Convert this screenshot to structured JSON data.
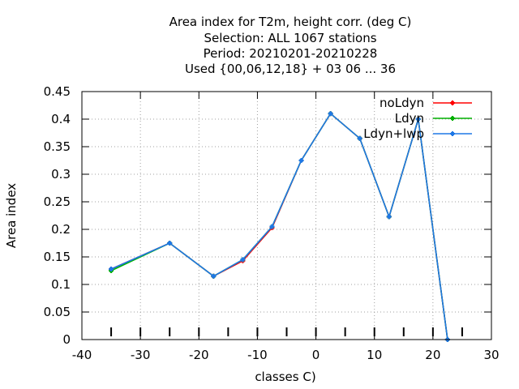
{
  "chart_data": {
    "type": "line",
    "title_lines": [
      "Area index  for T2m, height corr. (deg C)",
      "Selection: ALL   1067 stations",
      "Period: 20210201-20210228",
      "Used {00,06,12,18} + 03 06 ... 36"
    ],
    "xlabel": "classes C)",
    "ylabel": "Area index",
    "xlim": [
      -40,
      30
    ],
    "ylim": [
      0,
      0.45
    ],
    "x_ticks": [
      -40,
      -30,
      -20,
      -10,
      0,
      10,
      20,
      30
    ],
    "x_tick_labels": [
      "-40",
      "-30",
      "-20",
      "-10",
      "0",
      "10",
      "20",
      "30"
    ],
    "y_ticks": [
      0,
      0.05,
      0.1,
      0.15,
      0.2,
      0.25,
      0.3,
      0.35,
      0.4,
      0.45
    ],
    "y_tick_labels": [
      "0",
      "0.05",
      "0.1",
      "0.15",
      "0.2",
      "0.25",
      "0.3",
      "0.35",
      "0.4",
      "0.45"
    ],
    "minor_x_ticks": [
      -35,
      -25,
      -15,
      -5,
      5,
      15,
      25
    ],
    "grid": true,
    "legend_position": "top-right",
    "series": [
      {
        "name": "noLdyn",
        "color": "#ff0000",
        "x": [
          -35,
          -25,
          -17.5,
          -12.5,
          -7.5,
          -2.5,
          2.5,
          7.5,
          12.5,
          17.5,
          22.5
        ],
        "values": [
          0.128,
          0.175,
          0.115,
          0.143,
          0.203,
          0.325,
          0.41,
          0.365,
          0.223,
          0.4,
          0.0
        ]
      },
      {
        "name": "Ldyn",
        "color": "#00b000",
        "x": [
          -35,
          -25,
          -17.5,
          -12.5,
          -7.5,
          -2.5,
          2.5,
          7.5,
          12.5,
          17.5,
          22.5
        ],
        "values": [
          0.125,
          0.175,
          0.115,
          0.145,
          0.205,
          0.325,
          0.41,
          0.365,
          0.223,
          0.4,
          0.0
        ]
      },
      {
        "name": "Ldyn+lwp",
        "color": "#1e78e6",
        "x": [
          -35,
          -25,
          -17.5,
          -12.5,
          -7.5,
          -2.5,
          2.5,
          7.5,
          12.5,
          17.5,
          22.5
        ],
        "values": [
          0.128,
          0.175,
          0.115,
          0.145,
          0.205,
          0.325,
          0.41,
          0.365,
          0.223,
          0.4,
          0.0
        ]
      }
    ]
  }
}
